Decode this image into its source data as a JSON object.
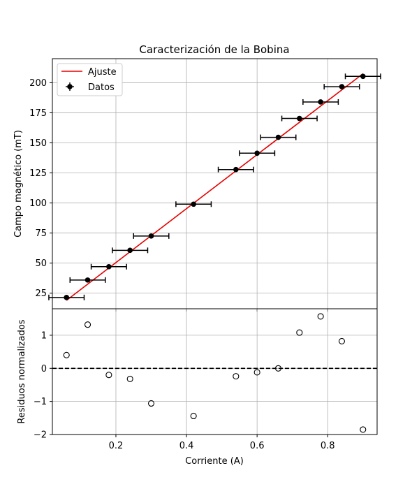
{
  "chart_data": [
    {
      "type": "scatter",
      "panel": "top",
      "title": "Caracterización de la Bobina",
      "xlabel": "",
      "ylabel": "Campo magnético (mT)",
      "xlim": [
        0.02,
        0.94
      ],
      "ylim": [
        12,
        220
      ],
      "grid": true,
      "legend_position": "top-left",
      "x_ticks": [
        0.2,
        0.4,
        0.6,
        0.8
      ],
      "y_ticks": [
        25,
        50,
        75,
        100,
        125,
        150,
        175,
        200
      ],
      "y_tick_labels": [
        "25",
        "50",
        "75",
        "100",
        "125",
        "150",
        "175",
        "200"
      ],
      "series": [
        {
          "name": "Datos",
          "kind": "errorbar",
          "color": "#000000",
          "x": [
            0.06,
            0.12,
            0.18,
            0.24,
            0.3,
            0.42,
            0.54,
            0.6,
            0.66,
            0.72,
            0.78,
            0.84,
            0.9
          ],
          "y": [
            21.4,
            35.9,
            47.0,
            60.6,
            72.5,
            99.0,
            127.8,
            141.4,
            154.6,
            170.3,
            184.0,
            196.7,
            205.3
          ],
          "xerr": [
            0.05,
            0.05,
            0.05,
            0.05,
            0.05,
            0.05,
            0.05,
            0.05,
            0.05,
            0.05,
            0.05,
            0.05,
            0.05
          ]
        },
        {
          "name": "Ajuste",
          "kind": "line",
          "color": "#e60000",
          "x": [
            0.06,
            0.9
          ],
          "y": [
            19.0,
            207.5
          ]
        }
      ],
      "legend": [
        "Ajuste",
        "Datos"
      ]
    },
    {
      "type": "scatter",
      "panel": "bottom",
      "xlabel": "Corriente (A)",
      "ylabel": "Residuos normalizados",
      "xlim": [
        0.02,
        0.94
      ],
      "ylim": [
        -2.0,
        1.8
      ],
      "grid": true,
      "x_ticks": [
        0.2,
        0.4,
        0.6,
        0.8
      ],
      "x_tick_labels": [
        "0.2",
        "0.4",
        "0.6",
        "0.8"
      ],
      "y_ticks": [
        -2,
        -1,
        0,
        1
      ],
      "y_tick_labels": [
        "−2",
        "−1",
        "0",
        "1"
      ],
      "reference_line": 0,
      "series": [
        {
          "kind": "open-circle",
          "color": "#000000",
          "x": [
            0.06,
            0.12,
            0.18,
            0.24,
            0.3,
            0.42,
            0.54,
            0.6,
            0.66,
            0.72,
            0.78,
            0.84,
            0.9
          ],
          "y": [
            0.4,
            1.32,
            -0.2,
            -0.32,
            -1.06,
            -1.44,
            -0.24,
            -0.12,
            0.0,
            1.08,
            1.57,
            0.82,
            -1.85
          ]
        }
      ]
    }
  ]
}
